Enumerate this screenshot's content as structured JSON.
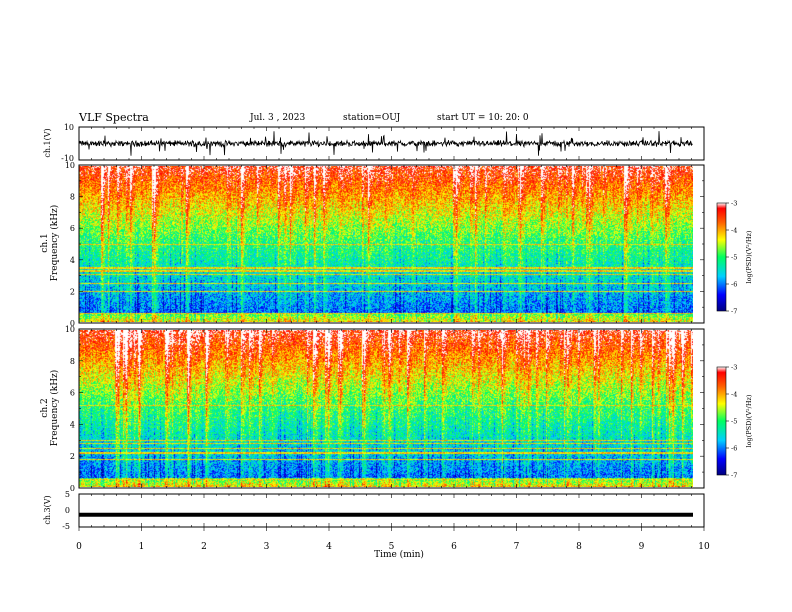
{
  "header": {
    "title": "VLF Spectra",
    "date": "Jul. 3 , 2023",
    "station": "station=OUJ",
    "start": "start UT = 10: 20: 0"
  },
  "chart_data": [
    {
      "type": "line",
      "panel": "ch1-waveform",
      "ylabel": "ch.1(V)",
      "ylim": [
        -10,
        10
      ],
      "yticks": [
        "10",
        "-10"
      ],
      "xlim": [
        0,
        10
      ],
      "series": [
        {
          "color": "#000000",
          "mean": 0,
          "typical_range": [
            -3,
            3
          ],
          "spike_range": [
            -8,
            8
          ]
        }
      ]
    },
    {
      "type": "heatmap",
      "panel": "ch1-spectrogram",
      "ylabel": "ch.1 Frequency (kHz)",
      "ylim": [
        0,
        10
      ],
      "yticks": [
        "0",
        "2",
        "4",
        "6",
        "8",
        "10"
      ],
      "xlim": [
        0,
        9.8
      ],
      "colorbar": {
        "label": "log(PSD)(V²/Hz)",
        "range": [
          -7,
          -3
        ],
        "ticks": [
          "-3",
          "-4",
          "-5",
          "-6",
          "-7"
        ]
      }
    },
    {
      "type": "heatmap",
      "panel": "ch2-spectrogram",
      "ylabel": "ch.2 Frequency (kHz)",
      "ylim": [
        0,
        10
      ],
      "yticks": [
        "0",
        "2",
        "4",
        "6",
        "8",
        "10"
      ],
      "xlim": [
        0,
        9.8
      ],
      "colorbar": {
        "label": "log(PSD)(V²/Hz)",
        "range": [
          -7,
          -3
        ],
        "ticks": [
          "-3",
          "-4",
          "-5",
          "-6",
          "-7"
        ]
      }
    },
    {
      "type": "line",
      "panel": "ch3-waveform",
      "ylabel": "ch.3(V)",
      "ylim": [
        -5,
        5
      ],
      "yticks": [
        "5",
        "0",
        "-5"
      ],
      "xlim": [
        0,
        10
      ],
      "series": [
        {
          "color": "#000000",
          "values_constant": -1.3
        }
      ]
    }
  ],
  "xaxis": {
    "label": "Time (min)",
    "ticks": [
      "0",
      "1",
      "2",
      "3",
      "4",
      "5",
      "6",
      "7",
      "8",
      "9",
      "10"
    ]
  }
}
